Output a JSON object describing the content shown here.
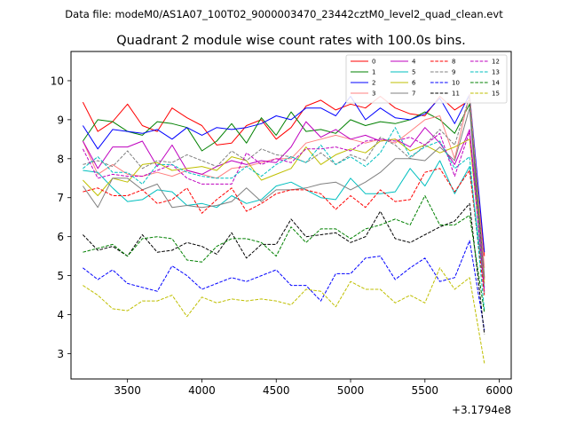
{
  "suptitle": "Data file: modeM0/AS1A07_100T02_9000003470_23442cztM0_level2_quad_clean.evt",
  "chart_data": {
    "type": "line",
    "title": "Quadrant 2 module wise count rates with 100.0s bins.",
    "xlabel": "",
    "ylabel": "",
    "x_offset_label": "+3.1794e8",
    "xlim": [
      3120,
      6080
    ],
    "ylim": [
      2.35,
      10.75
    ],
    "xticks": [
      3500,
      4000,
      4500,
      5000,
      5500,
      6000
    ],
    "yticks": [
      3,
      4,
      5,
      6,
      7,
      8,
      9,
      10
    ],
    "grid": false,
    "legend_position": "top-right",
    "x": [
      3200,
      3300,
      3400,
      3500,
      3600,
      3700,
      3800,
      3900,
      4000,
      4100,
      4200,
      4300,
      4400,
      4500,
      4600,
      4700,
      4800,
      4900,
      5000,
      5100,
      5200,
      5300,
      5400,
      5500,
      5600,
      5700,
      5800,
      5900
    ],
    "series": [
      {
        "name": "0",
        "color": "#ff0000",
        "dash": "solid",
        "values": [
          9.45,
          8.7,
          8.95,
          9.4,
          8.85,
          8.7,
          9.3,
          9.05,
          8.85,
          8.35,
          8.4,
          8.85,
          9.0,
          8.5,
          8.8,
          9.35,
          9.5,
          9.25,
          9.4,
          9.3,
          9.6,
          9.3,
          9.15,
          9.1,
          9.6,
          9.25,
          9.5,
          5.5
        ]
      },
      {
        "name": "1",
        "color": "#008000",
        "dash": "solid",
        "values": [
          8.45,
          9.0,
          8.95,
          8.7,
          8.6,
          8.95,
          8.9,
          8.8,
          8.2,
          8.45,
          8.9,
          8.4,
          9.05,
          8.6,
          9.2,
          8.7,
          8.75,
          8.65,
          9.0,
          8.85,
          8.95,
          8.9,
          9.0,
          9.2,
          9.0,
          8.65,
          9.4,
          4.95
        ]
      },
      {
        "name": "2",
        "color": "#0000ff",
        "dash": "solid",
        "values": [
          8.85,
          8.25,
          8.75,
          8.7,
          8.65,
          8.75,
          8.5,
          8.8,
          8.6,
          8.8,
          8.75,
          8.8,
          8.9,
          9.1,
          9.0,
          9.3,
          9.3,
          9.1,
          9.6,
          9.0,
          9.3,
          9.05,
          9.0,
          9.15,
          9.55,
          8.9,
          9.65,
          5.6
        ]
      },
      {
        "name": "3",
        "color": "#ff8080",
        "dash": "solid",
        "values": [
          8.45,
          7.6,
          7.85,
          7.6,
          7.55,
          7.65,
          7.55,
          7.7,
          7.6,
          7.5,
          7.75,
          7.8,
          7.9,
          8.0,
          8.0,
          8.4,
          8.5,
          8.6,
          8.5,
          8.4,
          8.5,
          8.4,
          8.7,
          9.0,
          9.1,
          8.0,
          9.65,
          5.2
        ]
      },
      {
        "name": "4",
        "color": "#bf00bf",
        "dash": "solid",
        "values": [
          8.45,
          7.75,
          8.3,
          8.3,
          8.45,
          7.8,
          8.35,
          7.7,
          7.6,
          7.8,
          7.95,
          7.85,
          7.95,
          7.9,
          8.3,
          8.95,
          8.55,
          8.75,
          8.5,
          8.6,
          8.45,
          8.5,
          8.3,
          8.8,
          8.4,
          7.85,
          8.75,
          4.9
        ]
      },
      {
        "name": "5",
        "color": "#00bfbf",
        "dash": "solid",
        "values": [
          7.7,
          7.65,
          7.25,
          6.9,
          6.95,
          7.2,
          7.15,
          6.8,
          6.85,
          6.75,
          7.05,
          6.85,
          6.95,
          7.3,
          7.4,
          7.2,
          7.0,
          6.95,
          7.5,
          7.1,
          7.1,
          7.15,
          7.75,
          7.3,
          7.95,
          7.1,
          7.8,
          4.7
        ]
      },
      {
        "name": "6",
        "color": "#bfbf00",
        "dash": "solid",
        "values": [
          7.45,
          7.05,
          7.5,
          7.4,
          7.85,
          7.9,
          7.7,
          7.75,
          7.8,
          7.7,
          8.05,
          7.95,
          7.45,
          7.6,
          7.75,
          8.3,
          7.85,
          8.1,
          8.25,
          8.15,
          8.45,
          8.5,
          8.2,
          8.35,
          8.15,
          8.3,
          8.5,
          4.8
        ]
      },
      {
        "name": "7",
        "color": "#808080",
        "dash": "solid",
        "values": [
          7.3,
          6.75,
          7.5,
          7.5,
          7.2,
          7.35,
          6.75,
          6.8,
          6.75,
          6.8,
          6.9,
          7.25,
          6.9,
          7.2,
          7.2,
          7.25,
          7.35,
          7.4,
          7.2,
          7.4,
          7.65,
          8.0,
          8.0,
          7.95,
          8.3,
          7.95,
          9.3,
          4.55
        ]
      },
      {
        "name": "8",
        "color": "#ff0000",
        "dash": "dashed",
        "values": [
          7.15,
          7.25,
          7.05,
          7.05,
          7.2,
          6.85,
          6.95,
          7.25,
          6.6,
          6.95,
          7.25,
          6.65,
          6.85,
          7.1,
          7.2,
          7.2,
          7.1,
          6.7,
          7.05,
          6.75,
          7.2,
          6.9,
          6.95,
          7.65,
          7.75,
          7.15,
          7.7,
          4.5
        ]
      },
      {
        "name": "9",
        "color": "#808080",
        "dash": "dashed",
        "values": [
          7.85,
          7.95,
          7.8,
          8.2,
          7.75,
          7.95,
          7.9,
          8.1,
          7.95,
          7.8,
          8.2,
          7.95,
          8.25,
          8.1,
          8.05,
          7.9,
          8.15,
          7.85,
          8.1,
          7.95,
          8.55,
          8.35,
          8.0,
          8.35,
          8.75,
          8.35,
          9.6,
          5.0
        ]
      },
      {
        "name": "10",
        "color": "#0000ff",
        "dash": "dashed",
        "values": [
          5.2,
          4.9,
          5.15,
          4.8,
          4.7,
          4.6,
          5.25,
          5.0,
          4.65,
          4.8,
          4.95,
          4.85,
          5.0,
          5.15,
          4.75,
          4.75,
          4.35,
          5.05,
          5.05,
          5.45,
          5.5,
          4.9,
          5.2,
          5.45,
          4.85,
          4.95,
          5.9,
          3.6
        ]
      },
      {
        "name": "11",
        "color": "#000000",
        "dash": "dashed",
        "values": [
          6.05,
          5.65,
          5.75,
          5.5,
          6.05,
          5.6,
          5.65,
          5.85,
          5.75,
          5.55,
          6.1,
          5.45,
          5.8,
          5.8,
          6.45,
          6.0,
          6.05,
          6.1,
          5.85,
          6.0,
          6.65,
          5.95,
          5.85,
          6.05,
          6.25,
          6.4,
          6.85,
          3.5
        ]
      },
      {
        "name": "12",
        "color": "#bf00bf",
        "dash": "dashed",
        "values": [
          8.25,
          7.5,
          7.6,
          7.55,
          7.55,
          7.7,
          7.85,
          7.5,
          7.35,
          7.35,
          7.35,
          8.15,
          7.85,
          8.0,
          7.9,
          8.25,
          8.25,
          8.3,
          8.2,
          8.45,
          8.5,
          8.45,
          8.55,
          8.35,
          8.65,
          7.55,
          8.7,
          4.6
        ]
      },
      {
        "name": "13",
        "color": "#00bfbf",
        "dash": "dashed",
        "values": [
          7.75,
          8.05,
          7.65,
          7.65,
          7.35,
          7.85,
          7.85,
          7.65,
          7.55,
          7.5,
          7.5,
          7.8,
          7.55,
          7.85,
          8.05,
          7.9,
          8.35,
          7.85,
          8.05,
          7.8,
          8.15,
          8.8,
          8.05,
          8.3,
          8.45,
          7.75,
          8.05,
          4.1
        ]
      },
      {
        "name": "14",
        "color": "#008000",
        "dash": "dashed",
        "values": [
          5.6,
          5.7,
          5.8,
          5.5,
          5.95,
          6.0,
          5.95,
          5.4,
          5.35,
          5.75,
          5.95,
          5.95,
          5.85,
          5.5,
          6.25,
          5.85,
          6.2,
          6.2,
          5.95,
          6.2,
          6.3,
          6.45,
          6.3,
          7.05,
          6.3,
          6.3,
          6.55,
          4.05
        ]
      },
      {
        "name": "15",
        "color": "#bfbf00",
        "dash": "dashed",
        "values": [
          4.75,
          4.5,
          4.15,
          4.1,
          4.35,
          4.35,
          4.5,
          3.95,
          4.45,
          4.3,
          4.4,
          4.35,
          4.4,
          4.35,
          4.25,
          4.65,
          4.6,
          4.2,
          4.85,
          4.65,
          4.65,
          4.3,
          4.5,
          4.3,
          5.2,
          4.65,
          4.95,
          2.75
        ]
      }
    ]
  }
}
